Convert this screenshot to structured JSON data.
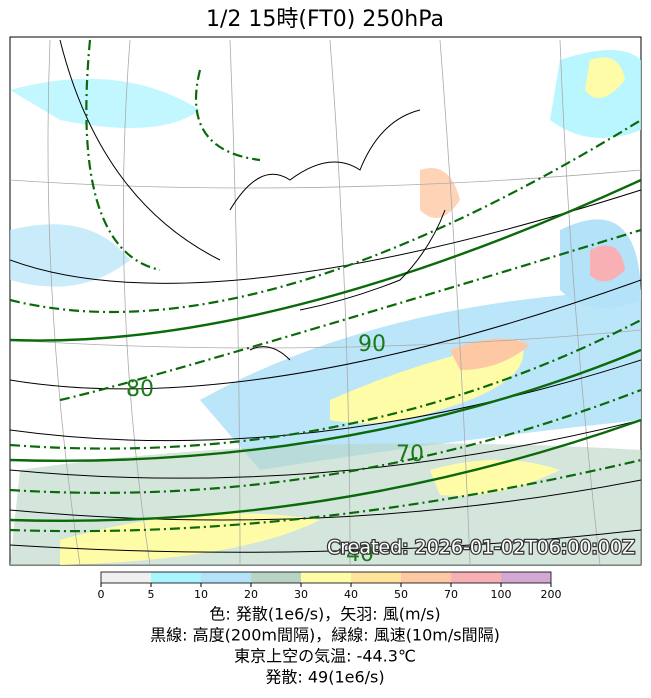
{
  "title": "1/2  15時(FT0)    250hPa",
  "created": "Created: 2026-01-02T06:00:00Z",
  "contour_labels": [
    80,
    90,
    70,
    40
  ],
  "colorbar": {
    "ticks": [
      0,
      5,
      10,
      20,
      30,
      40,
      50,
      70,
      100,
      200
    ],
    "colors": [
      "#f0f0f0",
      "#a8f4ff",
      "#b4e2f8",
      "#b8d4c4",
      "#fffca8",
      "#ffe49c",
      "#ffc8a4",
      "#f8b0b4",
      "#d4a8d4"
    ]
  },
  "captions": [
    "色: 発散(1e6/s)，矢羽: 風(m/s)",
    "黒線: 高度(200m間隔)，緑線: 風速(10m/s間隔)",
    "東京上空の気温: -44.3℃",
    "発散: 49(1e6/s)"
  ]
}
